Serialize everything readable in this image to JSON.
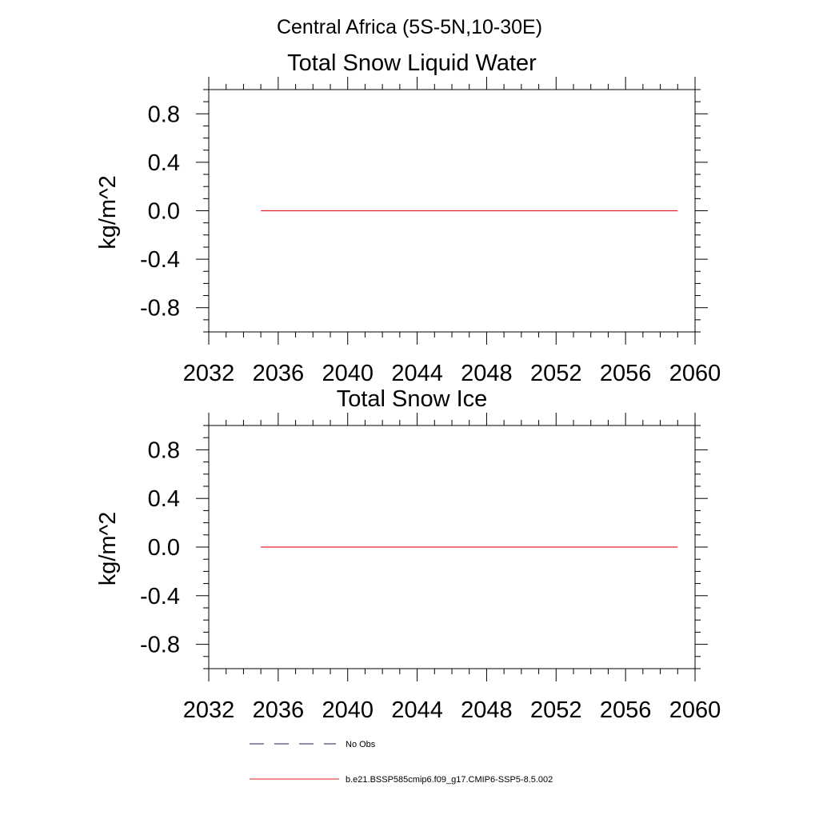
{
  "figure_title": "Central Africa (5S-5N,10-30E)",
  "legend": [
    {
      "label": "No Obs",
      "color": "#1a1a5a",
      "dash": "dashed"
    },
    {
      "label": "b.e21.BSSP585cmip6.f09_g17.CMIP6-SSP5-8.5.002",
      "color": "#e0202a",
      "dash": "solid"
    }
  ],
  "chart_data": [
    {
      "type": "line",
      "title": "Total Snow Liquid Water",
      "xlabel": "",
      "ylabel": "kg/m^2",
      "xlim": [
        2032,
        2060
      ],
      "ylim": [
        -1.0,
        1.0
      ],
      "xticks": [
        2032,
        2036,
        2040,
        2044,
        2048,
        2052,
        2056,
        2060
      ],
      "xtick_labels": [
        "2032",
        "2036",
        "2040",
        "2044",
        "2048",
        "2052",
        "2056",
        "2060"
      ],
      "yticks": [
        0.8,
        0.4,
        0.0,
        -0.4,
        -0.8
      ],
      "ytick_labels": [
        "0.8",
        "0.4",
        "0.0",
        "-0.4",
        "-0.8"
      ],
      "grid": false,
      "series": [
        {
          "name": "b.e21.BSSP585cmip6.f09_g17.CMIP6-SSP5-8.5.002",
          "color": "#e0202a",
          "x": [
            2035,
            2059
          ],
          "y": [
            0.0,
            0.0
          ]
        }
      ]
    },
    {
      "type": "line",
      "title": "Total Snow Ice",
      "xlabel": "",
      "ylabel": "kg/m^2",
      "xlim": [
        2032,
        2060
      ],
      "ylim": [
        -1.0,
        1.0
      ],
      "xticks": [
        2032,
        2036,
        2040,
        2044,
        2048,
        2052,
        2056,
        2060
      ],
      "xtick_labels": [
        "2032",
        "2036",
        "2040",
        "2044",
        "2048",
        "2052",
        "2056",
        "2060"
      ],
      "yticks": [
        0.8,
        0.4,
        0.0,
        -0.4,
        -0.8
      ],
      "ytick_labels": [
        "0.8",
        "0.4",
        "0.0",
        "-0.4",
        "-0.8"
      ],
      "grid": false,
      "series": [
        {
          "name": "b.e21.BSSP585cmip6.f09_g17.CMIP6-SSP5-8.5.002",
          "color": "#e0202a",
          "x": [
            2035,
            2059
          ],
          "y": [
            0.0,
            0.0
          ]
        }
      ]
    }
  ]
}
